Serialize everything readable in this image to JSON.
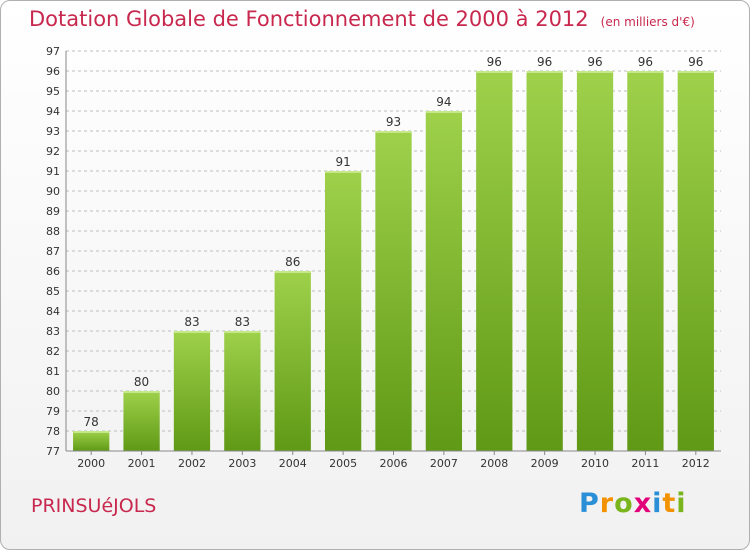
{
  "header": {
    "title": "Dotation Globale de Fonctionnement de 2000 à 2012",
    "subtitle": "(en milliers d'€)"
  },
  "footer": {
    "town": "PRINSUéJOLS",
    "logo_letters": [
      "P",
      "r",
      "o",
      "x",
      "i",
      "t",
      "i"
    ],
    "logo_colors": [
      "#2a8fd6",
      "#f39200",
      "#7ab51d",
      "#e2007a",
      "#2a8fd6",
      "#f39200",
      "#7ab51d"
    ]
  },
  "chart_data": {
    "type": "bar",
    "categories": [
      "2000",
      "2001",
      "2002",
      "2003",
      "2004",
      "2005",
      "2006",
      "2007",
      "2008",
      "2009",
      "2010",
      "2011",
      "2012"
    ],
    "values": [
      78,
      80,
      83,
      83,
      86,
      91,
      93,
      94,
      96,
      96,
      96,
      96,
      96
    ],
    "ylim": [
      77,
      97
    ],
    "yticks": [
      77,
      78,
      79,
      80,
      81,
      82,
      83,
      84,
      85,
      86,
      87,
      88,
      89,
      90,
      91,
      92,
      93,
      94,
      95,
      96,
      97
    ],
    "grid": true,
    "colors": {
      "bar_top": "#9fd14b",
      "bar_bottom": "#5f9915",
      "grid": "#bdbdbd",
      "text": "#333333"
    }
  }
}
